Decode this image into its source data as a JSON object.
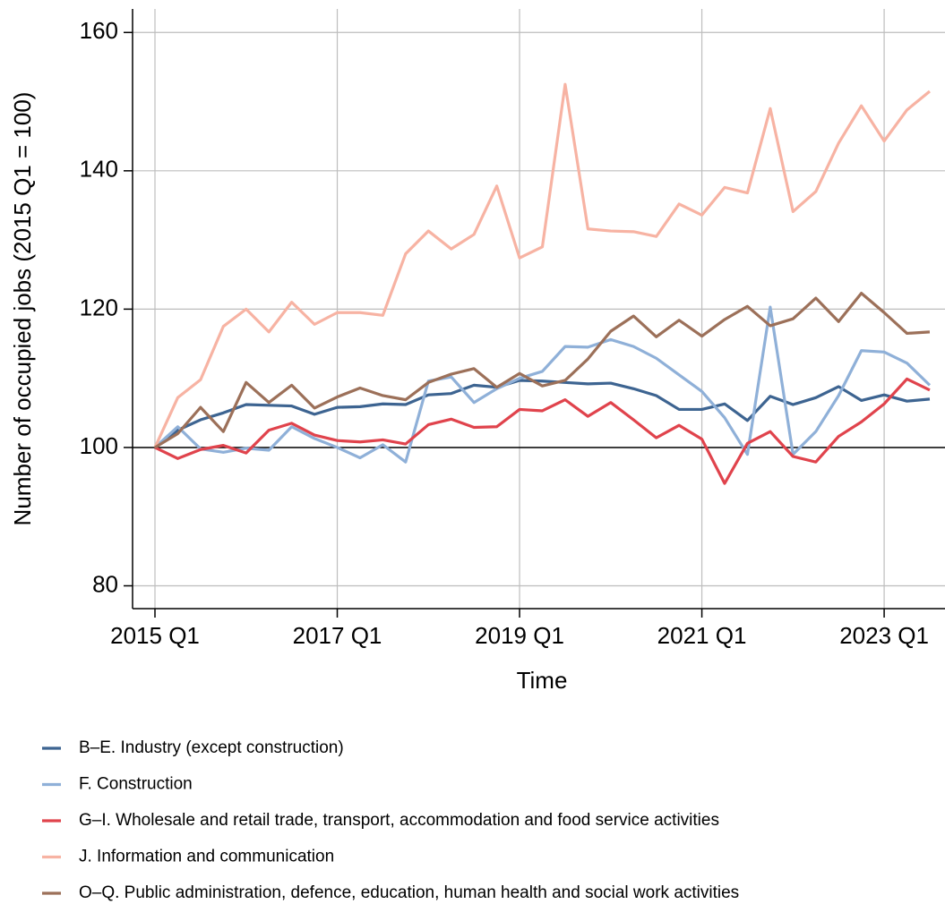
{
  "chart_data": {
    "type": "line",
    "xlabel": "Time",
    "ylabel": "Number of occupied jobs (2015 Q1 = 100)",
    "categories": [
      "2015 Q1",
      null,
      null,
      null,
      null,
      null,
      null,
      null,
      "2017 Q1",
      null,
      null,
      null,
      null,
      null,
      null,
      null,
      "2019 Q1",
      null,
      null,
      null,
      null,
      null,
      null,
      null,
      "2021 Q1",
      null,
      null,
      null,
      null,
      null,
      null,
      null,
      "2023 Q1",
      null,
      null
    ],
    "ylim": [
      76.7,
      163.4
    ],
    "yticks": [
      80,
      100,
      120,
      140,
      160
    ],
    "grid": true,
    "hline": 100,
    "legend": "bottom",
    "series": [
      {
        "name": "B–E. Industry (except construction)",
        "color": "#3d6491",
        "values": [
          100,
          102.5,
          104,
          105,
          106.2,
          106.1,
          106,
          104.8,
          105.8,
          105.9,
          106.3,
          106.2,
          107.6,
          107.8,
          109,
          108.7,
          109.7,
          109.6,
          109.4,
          109.2,
          109.3,
          108.5,
          107.5,
          105.5,
          105.5,
          106.3,
          103.9,
          107.4,
          106.2,
          107.2,
          108.8,
          106.8,
          107.6,
          106.7,
          107
        ]
      },
      {
        "name": "F. Construction",
        "color": "#8fb0d8",
        "values": [
          100,
          103,
          99.8,
          99.3,
          99.9,
          99.6,
          103,
          101.3,
          100,
          98.5,
          100.4,
          97.9,
          109.6,
          110.2,
          106.5,
          108.5,
          110,
          111,
          114.6,
          114.5,
          115.6,
          114.6,
          112.9,
          110.5,
          108.1,
          104.3,
          99,
          120.3,
          99,
          102.3,
          107.5,
          114,
          113.8,
          112.2,
          109
        ]
      },
      {
        "name": "G–I. Wholesale and retail trade, transport, accommodation and food service activities",
        "color": "#e0434c",
        "values": [
          100,
          98.4,
          99.7,
          100.3,
          99.2,
          102.5,
          103.5,
          101.8,
          101,
          100.8,
          101.1,
          100.5,
          103.3,
          104.1,
          102.9,
          103,
          105.5,
          105.3,
          106.9,
          104.5,
          106.5,
          104,
          101.4,
          103.2,
          101.2,
          94.8,
          100.6,
          102.3,
          98.7,
          97.9,
          101.6,
          103.7,
          106.3,
          109.9,
          108.3
        ]
      },
      {
        "name": "J. Information and communication",
        "color": "#f7b3a3",
        "values": [
          100,
          107.2,
          109.8,
          117.5,
          120,
          116.7,
          121,
          117.8,
          119.5,
          119.5,
          119.1,
          128,
          131.3,
          128.7,
          130.8,
          137.8,
          127.4,
          129,
          152.5,
          131.6,
          131.3,
          131.2,
          130.5,
          135.2,
          133.6,
          137.6,
          136.8,
          149,
          134.1,
          137,
          144,
          149.4,
          144.3,
          148.8,
          151.5
        ]
      },
      {
        "name": "O–Q. Public administration, defence, education, human health and social work activities",
        "color": "#9c7059",
        "values": [
          100,
          102,
          105.8,
          102.3,
          109.4,
          106.5,
          109,
          105.7,
          107.3,
          108.6,
          107.5,
          106.9,
          109.4,
          110.6,
          111.4,
          108.7,
          110.7,
          108.9,
          109.7,
          112.8,
          116.8,
          119,
          116,
          118.4,
          116.1,
          118.5,
          120.4,
          117.6,
          118.6,
          121.6,
          118.2,
          122.3,
          119.5,
          116.5,
          116.7
        ]
      }
    ]
  }
}
